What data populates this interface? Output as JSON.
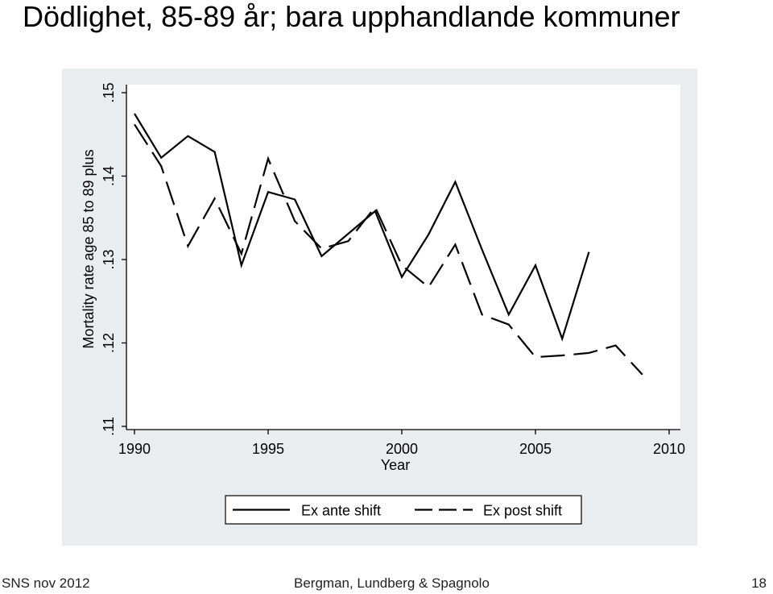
{
  "slide": {
    "title": "Dödlighet, 85-89 år; bara upphandlande kommuner",
    "footer_left": "SNS nov 2012",
    "footer_center": "Bergman, Lundberg & Spagnolo",
    "footer_right": "18"
  },
  "chart_data": {
    "type": "line",
    "xlabel": "Year",
    "ylabel": "Mortality rate age 85 to 89 plus",
    "xlim": [
      1990,
      2010
    ],
    "ylim": [
      0.11,
      0.15
    ],
    "x_ticks": [
      1990,
      1995,
      2000,
      2005,
      2010
    ],
    "x_tick_labels": [
      "1990",
      "1995",
      "2000",
      "2005",
      "2010"
    ],
    "y_ticks": [
      0.11,
      0.12,
      0.13,
      0.14,
      0.15
    ],
    "y_tick_labels": [
      ".11",
      ".12",
      ".13",
      ".14",
      ".15"
    ],
    "grid": false,
    "legend_position": "bottom",
    "series": [
      {
        "name": "Ex ante shift",
        "style": "solid",
        "color": "#000000",
        "x": [
          1990,
          1991,
          1992,
          1993,
          1994,
          1995,
          1996,
          1997,
          1998,
          1999,
          2000,
          2001,
          2002,
          2003,
          2004,
          2005,
          2006,
          2007
        ],
        "y": [
          0.1475,
          0.1422,
          0.1448,
          0.1429,
          0.1293,
          0.1381,
          0.1372,
          0.1304,
          0.1331,
          0.1358,
          0.1279,
          0.133,
          0.1393,
          0.1312,
          0.1234,
          0.1293,
          0.1205,
          0.1309
        ]
      },
      {
        "name": "Ex post shift",
        "style": "dashed",
        "color": "#000000",
        "x": [
          1990,
          1991,
          1992,
          1993,
          1994,
          1995,
          1996,
          1997,
          1998,
          1999,
          2000,
          2001,
          2002,
          2003,
          2004,
          2005,
          2006,
          2007,
          2008,
          2009
        ],
        "y": [
          0.1462,
          0.1412,
          0.1316,
          0.1373,
          0.1307,
          0.1421,
          0.1346,
          0.1313,
          0.1322,
          0.1363,
          0.1293,
          0.1267,
          0.1318,
          0.1234,
          0.1222,
          0.1183,
          0.1185,
          0.1188,
          0.1197,
          0.1162
        ]
      }
    ]
  }
}
